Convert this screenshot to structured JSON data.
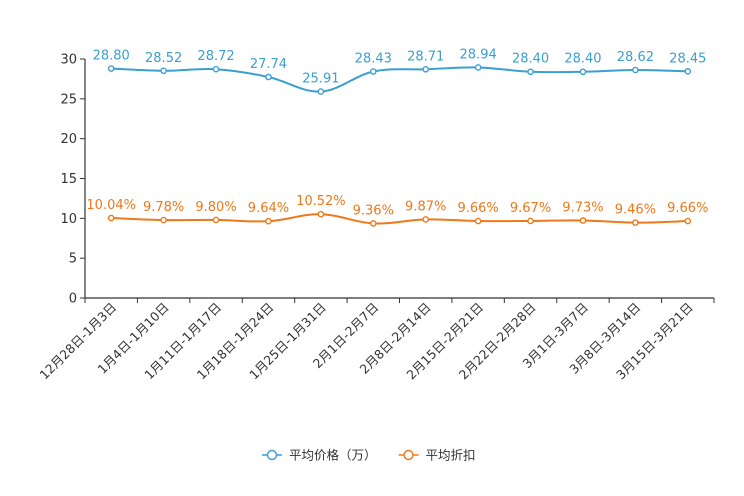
{
  "chart_data": {
    "type": "line",
    "title": "",
    "xlabel": "",
    "ylabel": "",
    "ylim": [
      0,
      30
    ],
    "yticks": [
      0,
      5,
      10,
      15,
      20,
      25,
      30
    ],
    "grid": false,
    "legend_position": "bottom-center",
    "categories": [
      "12月28日-1月3日",
      "1月4日-1月10日",
      "1月11日-1月17日",
      "1月18日-1月24日",
      "1月25日-1月31日",
      "2月1日-2月7日",
      "2月8日-2月14日",
      "2月15日-2月21日",
      "2月22日-2月28日",
      "3月1日-3月7日",
      "3月8日-3月14日",
      "3月15日-3月21日"
    ],
    "series": [
      {
        "name": "平均价格（万）",
        "color": "#3a9fd1",
        "values": [
          28.8,
          28.52,
          28.72,
          27.74,
          25.91,
          28.43,
          28.71,
          28.94,
          28.4,
          28.4,
          28.62,
          28.45
        ],
        "labels": [
          "28.80",
          "28.52",
          "28.72",
          "27.74",
          "25.91",
          "28.43",
          "28.71",
          "28.94",
          "28.40",
          "28.40",
          "28.62",
          "28.45"
        ]
      },
      {
        "name": "平均折扣",
        "color": "#f07818",
        "values": [
          10.04,
          9.78,
          9.8,
          9.64,
          10.52,
          9.36,
          9.87,
          9.66,
          9.67,
          9.73,
          9.46,
          9.66
        ],
        "labels": [
          "10.04%",
          "9.78%",
          "9.80%",
          "9.64%",
          "10.52%",
          "9.36%",
          "9.87%",
          "9.66%",
          "9.67%",
          "9.73%",
          "9.46%",
          "9.66%"
        ]
      }
    ]
  }
}
